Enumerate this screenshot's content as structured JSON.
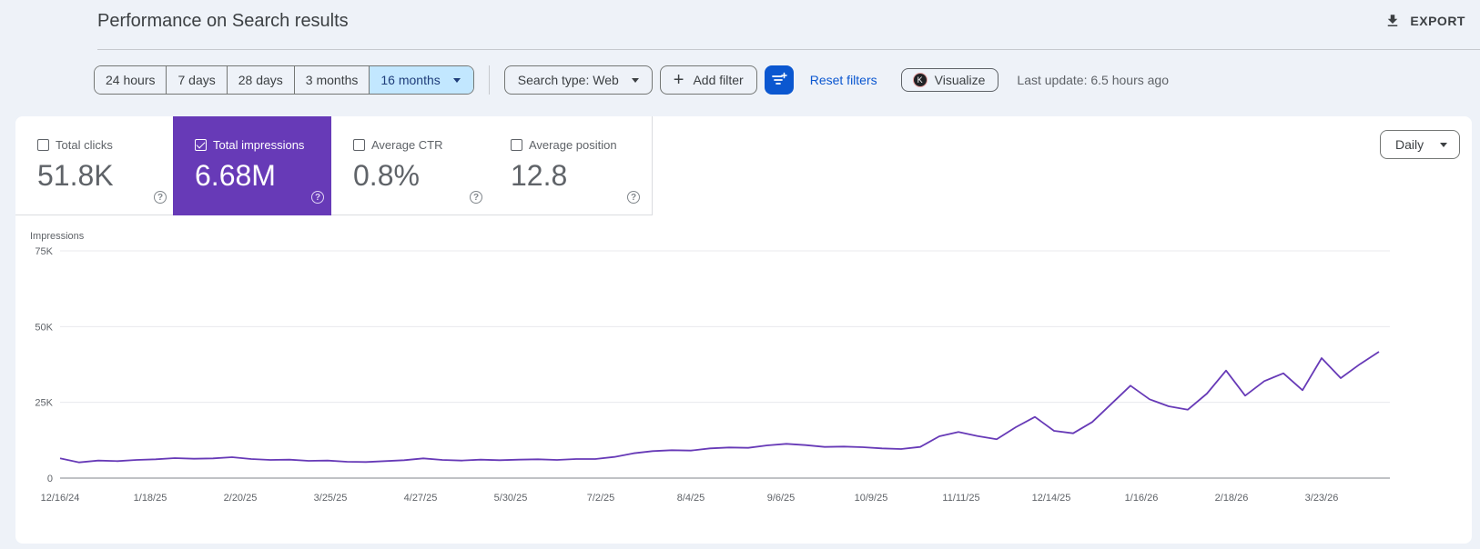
{
  "header": {
    "title": "Performance on Search results",
    "export_label": "EXPORT",
    "export_icon": "download-icon"
  },
  "toolbar": {
    "date_ranges": [
      "24 hours",
      "7 days",
      "28 days",
      "3 months",
      "16 months"
    ],
    "selected_range": "16 months",
    "search_type": "Search type: Web",
    "add_filter": "Add filter",
    "reset_filters": "Reset filters",
    "visualize": "Visualize",
    "visualize_badge": "K",
    "last_update": "Last update: 6.5 hours ago"
  },
  "metrics": [
    {
      "label": "Total clicks",
      "value": "51.8K",
      "checked": false
    },
    {
      "label": "Total impressions",
      "value": "6.68M",
      "checked": true
    },
    {
      "label": "Average CTR",
      "value": "0.8%",
      "checked": false
    },
    {
      "label": "Average position",
      "value": "12.8",
      "checked": false
    }
  ],
  "granularity": "Daily",
  "colors": {
    "accent": "#673ab7",
    "primary": "#0b57d0",
    "selected_chip": "#c2e7ff",
    "line": "#673ab7"
  },
  "chart_data": {
    "type": "line",
    "ylabel": "Impressions",
    "ylim": [
      0,
      75000
    ],
    "y_ticks": [
      "0",
      "25K",
      "50K",
      "75K"
    ],
    "y_tick_values": [
      0,
      25000,
      50000,
      75000
    ],
    "x_tick_labels": [
      "12/16/24",
      "1/18/25",
      "2/20/25",
      "3/25/25",
      "4/27/25",
      "5/30/25",
      "7/2/25",
      "8/4/25",
      "9/6/25",
      "10/9/25",
      "11/11/25",
      "12/14/25",
      "1/16/26",
      "2/18/26",
      "3/23/26"
    ],
    "x_range": [
      "12/16/24",
      "4/17/26"
    ],
    "grid": true,
    "series": [
      {
        "name": "Impressions",
        "x": [
          "12/16/24",
          "12/23/24",
          "12/30/24",
          "1/6/25",
          "1/13/25",
          "1/20/25",
          "1/27/25",
          "2/3/25",
          "2/10/25",
          "2/17/25",
          "2/24/25",
          "3/3/25",
          "3/10/25",
          "3/17/25",
          "3/24/25",
          "3/31/25",
          "4/7/25",
          "4/14/25",
          "4/21/25",
          "4/28/25",
          "5/5/25",
          "5/12/25",
          "5/19/25",
          "5/26/25",
          "6/2/25",
          "6/9/25",
          "6/16/25",
          "6/23/25",
          "6/30/25",
          "7/7/25",
          "7/14/25",
          "7/21/25",
          "7/28/25",
          "8/4/25",
          "8/11/25",
          "8/18/25",
          "8/25/25",
          "9/1/25",
          "9/8/25",
          "9/15/25",
          "9/22/25",
          "9/29/25",
          "10/6/25",
          "10/13/25",
          "10/20/25",
          "10/27/25",
          "11/3/25",
          "11/10/25",
          "11/17/25",
          "11/24/25",
          "12/1/25",
          "12/8/25",
          "12/15/25",
          "12/22/25",
          "12/29/25",
          "1/5/26",
          "1/12/26",
          "1/19/26",
          "1/26/26",
          "2/2/26",
          "2/9/26",
          "2/16/26",
          "2/23/26",
          "3/2/26",
          "3/9/26",
          "3/16/26",
          "3/23/26",
          "3/30/26",
          "4/6/26",
          "4/13/26"
        ],
        "values": [
          6500,
          5200,
          5800,
          5600,
          6000,
          6200,
          6600,
          6400,
          6500,
          6900,
          6300,
          6000,
          6100,
          5700,
          5800,
          5400,
          5300,
          5600,
          5900,
          6500,
          6000,
          5800,
          6100,
          5900,
          6100,
          6200,
          6000,
          6300,
          6300,
          7000,
          8200,
          8900,
          9200,
          9100,
          9800,
          10100,
          10000,
          10800,
          11300,
          10900,
          10300,
          10400,
          10200,
          9800,
          9600,
          10300,
          13800,
          15200,
          13900,
          12800,
          16800,
          20200,
          15600,
          14800,
          18500,
          24500,
          30500,
          26000,
          23700,
          22600,
          27900,
          35500,
          27200,
          32000,
          34600,
          29000,
          39600,
          33000,
          37600,
          41700
        ]
      }
    ]
  }
}
